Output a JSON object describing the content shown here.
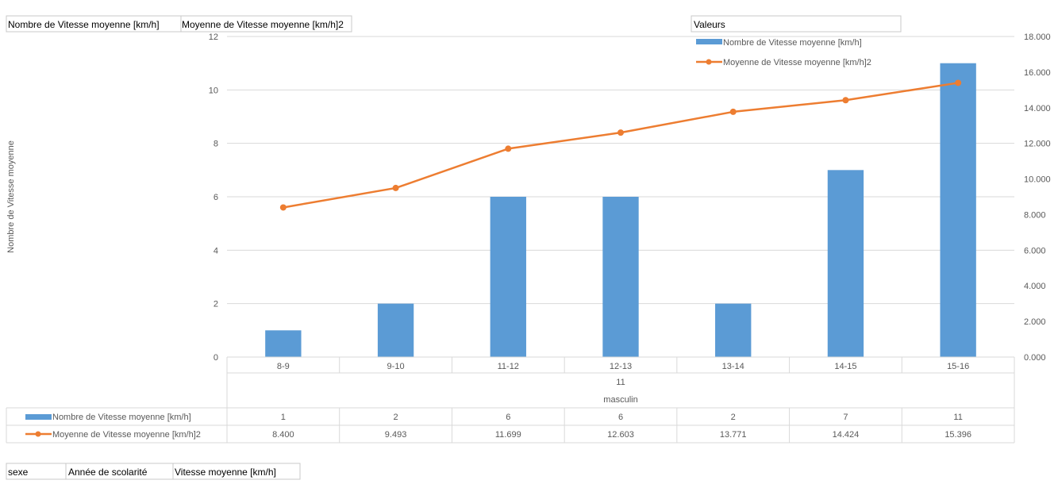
{
  "pivot": {
    "data_fields": [
      "Nombre de Vitesse moyenne [km/h]",
      "Moyenne de Vitesse moyenne [km/h]2"
    ],
    "legend_field": "Valeurs",
    "row_fields": [
      "sexe",
      "Année de scolarité",
      "Vitesse moyenne [km/h]"
    ]
  },
  "chart_data": {
    "type": "bar",
    "categories": [
      "8-9",
      "9-10",
      "11-12",
      "12-13",
      "13-14",
      "14-15",
      "15-16"
    ],
    "category_groups": [
      {
        "level": 2,
        "label": "11",
        "span": [
          0,
          6
        ]
      },
      {
        "level": 3,
        "label": "masculin",
        "span": [
          0,
          6
        ]
      }
    ],
    "series": [
      {
        "name": "Nombre de Vitesse moyenne [km/h]",
        "type": "bar",
        "axis": "left",
        "color": "#5b9bd5",
        "values": [
          1,
          2,
          6,
          6,
          2,
          7,
          11
        ],
        "labels": [
          "1",
          "2",
          "6",
          "6",
          "2",
          "7",
          "11"
        ]
      },
      {
        "name": "Moyenne de Vitesse moyenne [km/h]2",
        "type": "line",
        "axis": "right",
        "color": "#ed7d31",
        "values": [
          8.4,
          9.493,
          11.699,
          12.603,
          13.771,
          14.424,
          15.396
        ],
        "labels": [
          "8.400",
          "9.493",
          "11.699",
          "12.603",
          "13.771",
          "14.424",
          "15.396"
        ]
      }
    ],
    "ylabel": "Nombre de Vitesse moyenne",
    "ylim": [
      0,
      12
    ],
    "yticks": [
      0,
      2,
      4,
      6,
      8,
      10,
      12
    ],
    "ytick_labels": [
      "0",
      "2",
      "4",
      "6",
      "8",
      "10",
      "12"
    ],
    "y2lim": [
      0,
      18
    ],
    "y2ticks": [
      0,
      2,
      4,
      6,
      8,
      10,
      12,
      14,
      16,
      18
    ],
    "y2tick_labels": [
      "0.000",
      "2.000",
      "4.000",
      "6.000",
      "8.000",
      "10.000",
      "12.000",
      "14.000",
      "16.000",
      "18.000"
    ],
    "grid": true,
    "legend": "top-right",
    "data_table": true
  }
}
